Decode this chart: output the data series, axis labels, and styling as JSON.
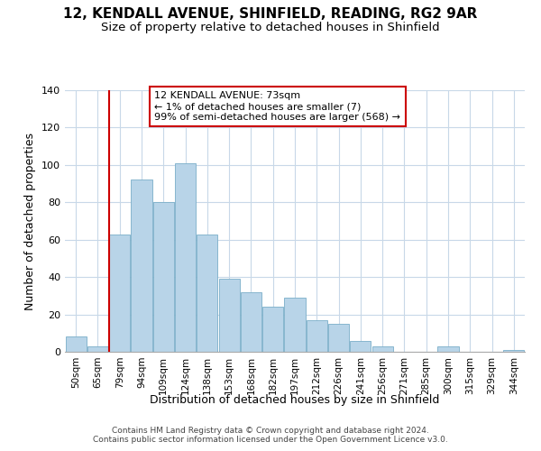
{
  "title": "12, KENDALL AVENUE, SHINFIELD, READING, RG2 9AR",
  "subtitle": "Size of property relative to detached houses in Shinfield",
  "xlabel": "Distribution of detached houses by size in Shinfield",
  "ylabel": "Number of detached properties",
  "bar_labels": [
    "50sqm",
    "65sqm",
    "79sqm",
    "94sqm",
    "109sqm",
    "124sqm",
    "138sqm",
    "153sqm",
    "168sqm",
    "182sqm",
    "197sqm",
    "212sqm",
    "226sqm",
    "241sqm",
    "256sqm",
    "271sqm",
    "285sqm",
    "300sqm",
    "315sqm",
    "329sqm",
    "344sqm"
  ],
  "bar_values": [
    8,
    3,
    63,
    92,
    80,
    101,
    63,
    39,
    32,
    24,
    29,
    17,
    15,
    6,
    3,
    0,
    0,
    3,
    0,
    0,
    1
  ],
  "bar_color": "#b8d4e8",
  "bar_edge_color": "#7aaec8",
  "marker_line_color": "#cc0000",
  "annotation_line1": "12 KENDALL AVENUE: 73sqm",
  "annotation_line2": "← 1% of detached houses are smaller (7)",
  "annotation_line3": "99% of semi-detached houses are larger (568) →",
  "annotation_box_edge": "#cc0000",
  "ylim": [
    0,
    140
  ],
  "yticks": [
    0,
    20,
    40,
    60,
    80,
    100,
    120,
    140
  ],
  "footer_line1": "Contains HM Land Registry data © Crown copyright and database right 2024.",
  "footer_line2": "Contains public sector information licensed under the Open Government Licence v3.0.",
  "background_color": "#ffffff",
  "grid_color": "#c8d8e8"
}
